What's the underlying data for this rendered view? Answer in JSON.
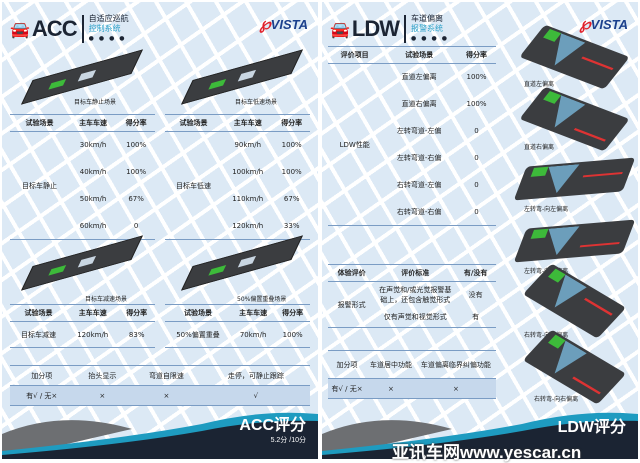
{
  "acc": {
    "abbr": "ACC",
    "title_line1": "自适应巡航",
    "title_line2": "控制系统",
    "logo": "VISTA",
    "scenes": [
      {
        "caption": "目标车静止场景",
        "headers": [
          "试验场景",
          "主车车速",
          "得分率"
        ],
        "group": "目标车静止",
        "rows": [
          [
            "30km/h",
            "100%"
          ],
          [
            "40km/h",
            "100%"
          ],
          [
            "50km/h",
            "67%"
          ],
          [
            "60km/h",
            "0"
          ]
        ]
      },
      {
        "caption": "目标车低速场景",
        "headers": [
          "试验场景",
          "主车车速",
          "得分率"
        ],
        "group": "目标车低速",
        "rows": [
          [
            "90km/h",
            "100%"
          ],
          [
            "100km/h",
            "100%"
          ],
          [
            "110km/h",
            "67%"
          ],
          [
            "120km/h",
            "33%"
          ]
        ]
      },
      {
        "caption": "目标车减速场景",
        "headers": [
          "试验场景",
          "主车车速",
          "得分率"
        ],
        "rows": [
          [
            "目标车减速",
            "120km/h",
            "83%"
          ]
        ]
      },
      {
        "caption": "50%偏置重叠场景",
        "headers": [
          "试验场景",
          "主车车速",
          "得分率"
        ],
        "rows": [
          [
            "50%偏置重叠",
            "70km/h",
            "100%"
          ]
        ]
      }
    ],
    "bonus": {
      "headers": [
        "加分项",
        "抬头显示",
        "弯道自限速",
        "走停，可静止跟踪"
      ],
      "row": [
        "有√ / 无×",
        "×",
        "×",
        "√"
      ]
    },
    "score_title": "ACC评分",
    "score_value": "5.2分 /10分"
  },
  "ldw": {
    "abbr": "LDW",
    "title_line1": "车道偏离",
    "title_line2": "报警系统",
    "logo": "VISTA",
    "perf": {
      "headers": [
        "评价项目",
        "试验场景",
        "得分率"
      ],
      "group": "LDW性能",
      "rows": [
        [
          "直道左偏离",
          "100%"
        ],
        [
          "直道右偏离",
          "100%"
        ],
        [
          "左转弯道-左偏",
          "0"
        ],
        [
          "左转弯道-右偏",
          "0"
        ],
        [
          "右转弯道-左偏",
          "0"
        ],
        [
          "右转弯道-右偏",
          "0"
        ]
      ]
    },
    "exp": {
      "headers": [
        "体验评价",
        "评价标准",
        "有/没有"
      ],
      "group": "报警形式",
      "rows": [
        [
          "在声觉和/或光觉报警基础上，还包含触觉形式",
          "没有"
        ],
        [
          "仅有声觉和视觉形式",
          "有"
        ]
      ]
    },
    "bonus": {
      "headers": [
        "加分项",
        "车道居中功能",
        "车道偏离临界纠偏功能"
      ],
      "row": [
        "有√ / 无×",
        "×",
        "×"
      ]
    },
    "images": [
      "直道左偏离",
      "直道右偏离",
      "左转弯-向左偏离",
      "左转弯-向右偏离",
      "右转弯-向左偏离",
      "右转弯-向右偏离"
    ],
    "score_title": "LDW评分"
  },
  "watermark": "亚讯车网www.yescar.cn",
  "colors": {
    "dark": "#1b2433",
    "accent": "#2aa0c8",
    "line": "#7a9cc4"
  }
}
